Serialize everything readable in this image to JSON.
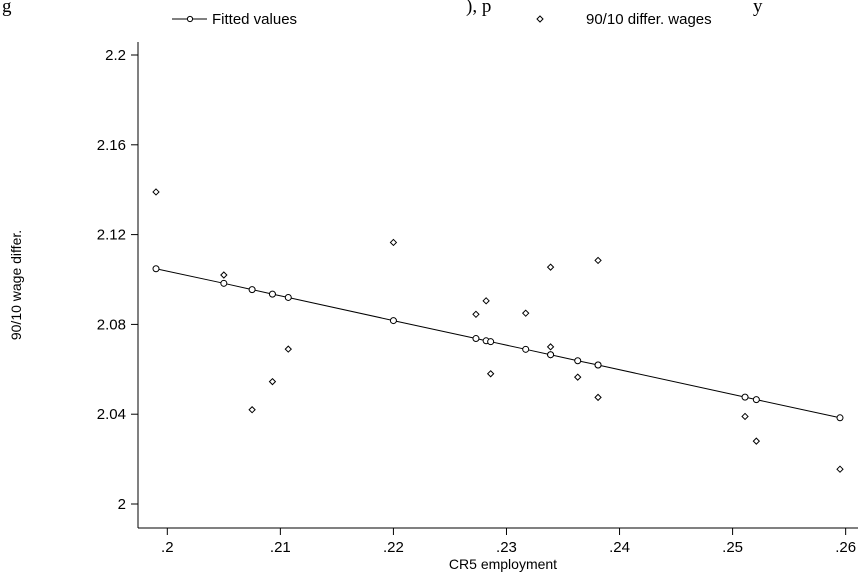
{
  "header": {
    "fragments": [
      "g",
      "), p",
      "y"
    ]
  },
  "chart_data": {
    "type": "scatter",
    "title": "",
    "xlabel": "CR5 employment",
    "ylabel": "90/10 wage differ.",
    "xlim": [
      0.199,
      0.2595
    ],
    "ylim": [
      2.0,
      2.2
    ],
    "xticks": [
      0.2,
      0.21,
      0.22,
      0.23,
      0.24,
      0.25,
      0.26
    ],
    "xtick_labels": [
      ".2",
      ".21",
      ".22",
      ".23",
      ".24",
      ".25",
      ".26"
    ],
    "yticks": [
      2.0,
      2.04,
      2.08,
      2.12,
      2.16,
      2.2
    ],
    "ytick_labels": [
      "2",
      "2.04",
      "2.08",
      "2.12",
      "2.16",
      "2.2"
    ],
    "grid": false,
    "legend_position": "top",
    "series": [
      {
        "name": "Fitted values",
        "style": "line-with-circles",
        "x": [
          0.199,
          0.205,
          0.2075,
          0.2093,
          0.2107,
          0.22,
          0.2273,
          0.2282,
          0.2286,
          0.2317,
          0.2339,
          0.2339,
          0.2363,
          0.2381,
          0.2381,
          0.2511,
          0.2521,
          0.2595
        ],
        "y": [
          2.1048,
          2.0983,
          2.0955,
          2.0935,
          2.092,
          2.0817,
          2.0737,
          2.0727,
          2.0723,
          2.0689,
          2.0665,
          2.0665,
          2.0638,
          2.0619,
          2.0619,
          2.0476,
          2.0465,
          2.0384
        ]
      },
      {
        "name": "90/10 differ. wages",
        "style": "diamond-markers",
        "x": [
          0.199,
          0.205,
          0.2075,
          0.2093,
          0.2107,
          0.22,
          0.2273,
          0.2282,
          0.2286,
          0.2317,
          0.2339,
          0.2339,
          0.2363,
          0.2381,
          0.2381,
          0.2511,
          0.2521,
          0.2595
        ],
        "y": [
          2.139,
          2.102,
          2.042,
          2.0545,
          2.069,
          2.1165,
          2.0845,
          2.0905,
          2.058,
          2.085,
          2.1055,
          2.07,
          2.0565,
          2.1085,
          2.0475,
          2.039,
          2.028,
          2.0155
        ]
      }
    ]
  }
}
